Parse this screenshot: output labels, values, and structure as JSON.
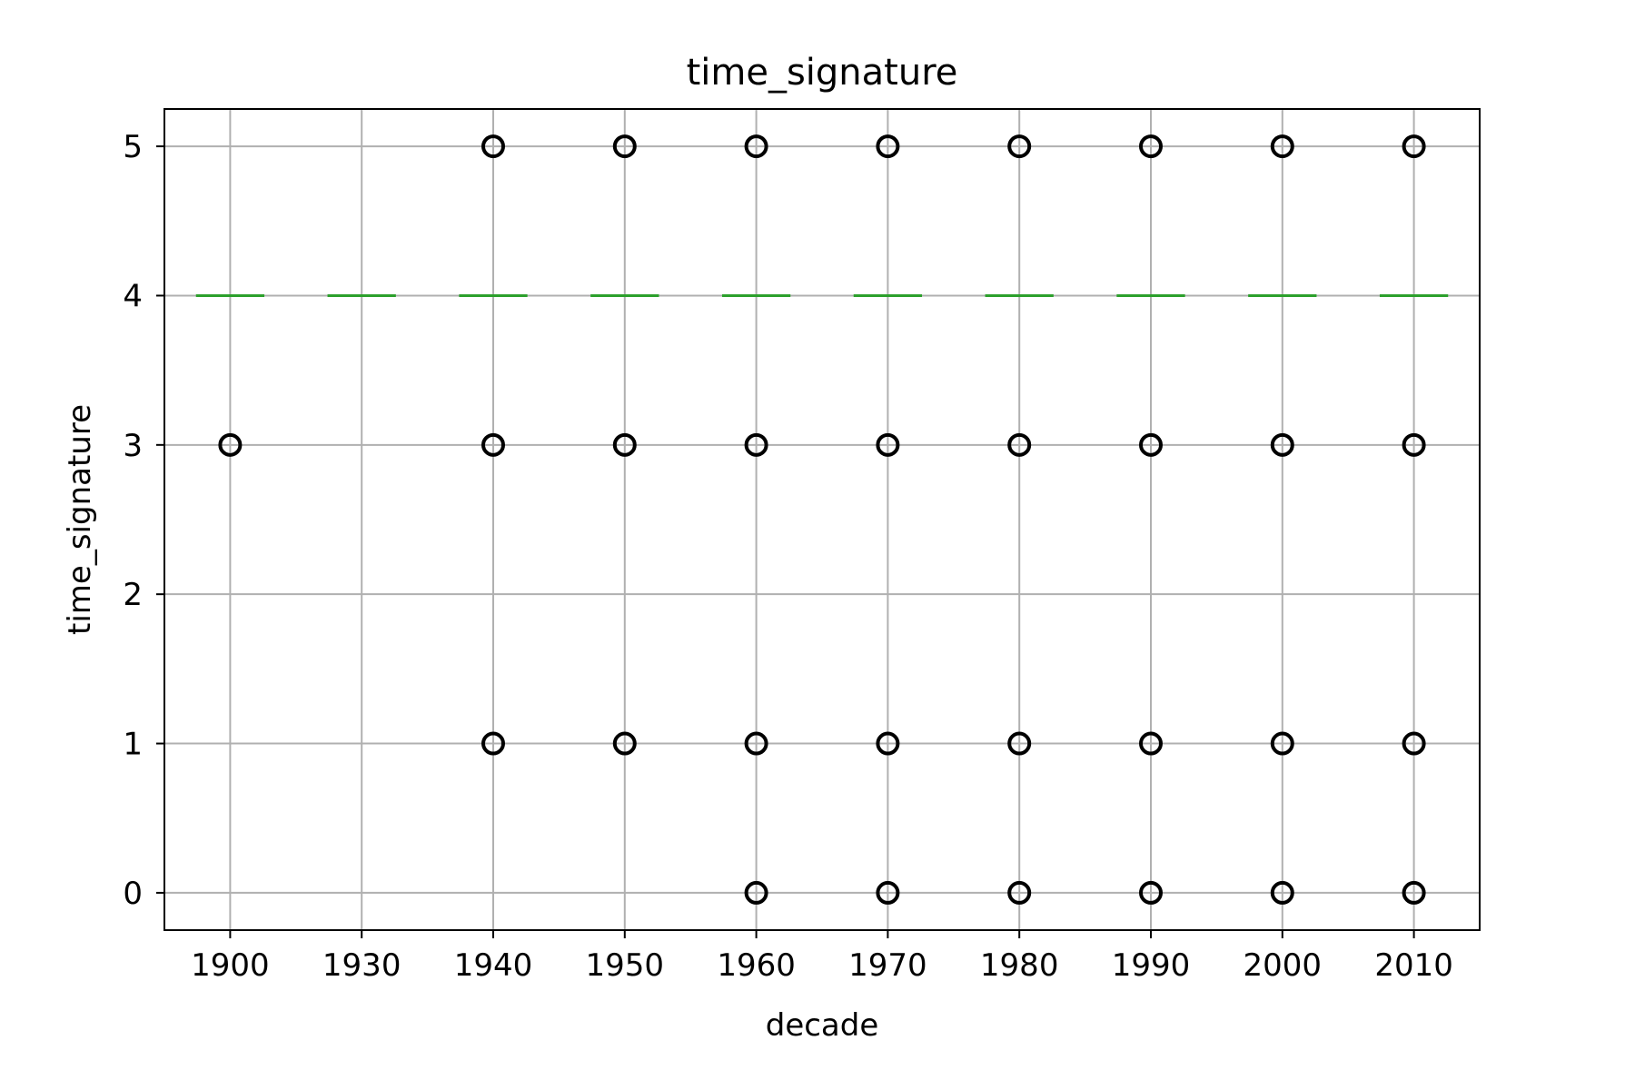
{
  "chart_data": {
    "type": "box",
    "title": "time_signature",
    "xlabel": "decade",
    "ylabel": "time_signature",
    "categories": [
      "1900",
      "1930",
      "1940",
      "1950",
      "1960",
      "1970",
      "1980",
      "1990",
      "2000",
      "2010"
    ],
    "yticks": [
      "0",
      "1",
      "2",
      "3",
      "4",
      "5"
    ],
    "ylim": [
      -0.25,
      5.25
    ],
    "grid": true,
    "medians": [
      4,
      4,
      4,
      4,
      4,
      4,
      4,
      4,
      4,
      4
    ],
    "q1": [
      4,
      4,
      4,
      4,
      4,
      4,
      4,
      4,
      4,
      4
    ],
    "q3": [
      4,
      4,
      4,
      4,
      4,
      4,
      4,
      4,
      4,
      4
    ],
    "outliers": [
      [
        3
      ],
      [],
      [
        1,
        3,
        5
      ],
      [
        1,
        3,
        5
      ],
      [
        0,
        1,
        3,
        5
      ],
      [
        0,
        1,
        3,
        5
      ],
      [
        0,
        1,
        3,
        5
      ],
      [
        0,
        1,
        3,
        5
      ],
      [
        0,
        1,
        3,
        5
      ],
      [
        0,
        1,
        3,
        5
      ]
    ],
    "colors": {
      "median": "#2ca02c",
      "outlier": "#000000",
      "grid": "#b0b0b0",
      "axes": "#000000"
    }
  }
}
